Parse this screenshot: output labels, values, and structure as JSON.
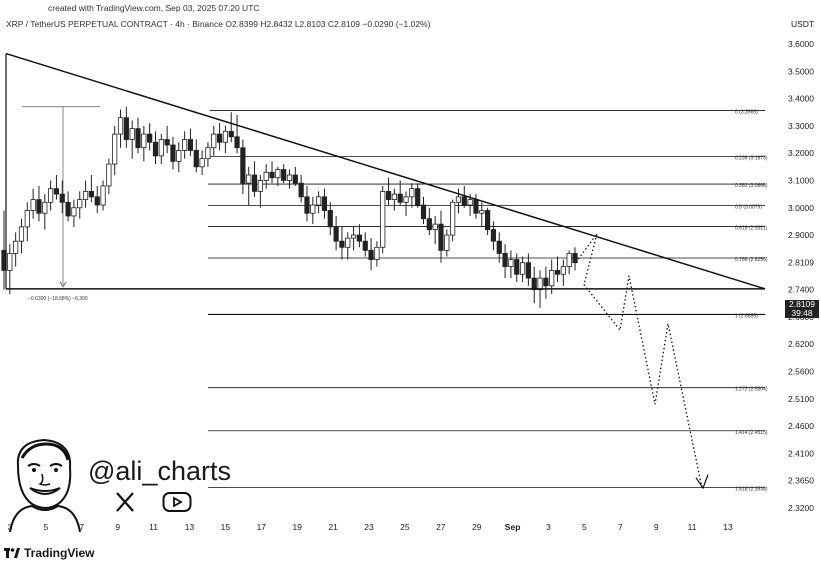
{
  "header": {
    "created": "created with TradingView.com, Sep 03, 2025 07:20 UTC",
    "symbol_line": "XRP / TetherUS PERPETUAL CONTRACT · 4h · Binance  O2.8399  H2.8432  L2.8103  C2.8109  −0.0290 (−1.02%)",
    "currency": "USDT"
  },
  "branding": {
    "handle": "@ali_charts",
    "logo_text": "TradingView",
    "social_icons": [
      "x-icon",
      "youtube-icon"
    ]
  },
  "price_tag": {
    "price": "2.8109",
    "countdown": "39:48"
  },
  "colors": {
    "candle_up": "#ffffff",
    "candle_down": "#222222",
    "lines": "#111111",
    "accent": "#131722"
  },
  "chart_data": {
    "type": "candlestick",
    "title": "",
    "price_axis_labels": [
      "3.6000",
      "3.5000",
      "3.4000",
      "3.3000",
      "3.2000",
      "3.1000",
      "3.0000",
      "2.9000",
      "2.8109",
      "2.7400",
      "2.6800",
      "2.6200",
      "2.5600",
      "2.5100",
      "2.4600",
      "2.4100",
      "2.3650",
      "2.3200"
    ],
    "ylim": [
      2.31,
      3.61
    ],
    "date_axis_labels": [
      "3",
      "5",
      "7",
      "9",
      "11",
      "13",
      "15",
      "17",
      "19",
      "21",
      "23",
      "25",
      "27",
      "29",
      "Sep",
      "3",
      "5",
      "7",
      "9",
      "11",
      "13"
    ],
    "fib_levels": [
      {
        "label": "0 (3.3565)",
        "price": 3.3565
      },
      {
        "label": "0.236 (3.1873)",
        "price": 3.1873
      },
      {
        "label": "0.382 (3.0868)",
        "price": 3.0868
      },
      {
        "label": "0.5 (3.0079)",
        "price": 3.0079
      },
      {
        "label": "0.618 (2.9311)",
        "price": 2.9311
      },
      {
        "label": "0.786 (2.8250)",
        "price": 2.825
      },
      {
        "label": "1 (2.6855)",
        "price": 2.6855
      },
      {
        "label": "1.272 (2.5304)",
        "price": 2.5304
      },
      {
        "label": "1.414 (2.4515)",
        "price": 2.4515
      },
      {
        "label": "1.618 (2.3538)",
        "price": 2.3538
      }
    ],
    "measure_label": "−0.6300 (−18.68%) −6,300",
    "triangle": {
      "top_price": 3.565,
      "base_price": 2.742
    },
    "projection_prices": [
      2.8109,
      2.905,
      2.753,
      2.651,
      2.776,
      2.618,
      2.653
    ],
    "candles": [
      [
        2.85,
        2.99,
        2.74,
        2.79
      ],
      [
        2.79,
        2.87,
        2.73,
        2.84
      ],
      [
        2.84,
        2.91,
        2.8,
        2.88
      ],
      [
        2.88,
        2.96,
        2.84,
        2.93
      ],
      [
        2.93,
        3.02,
        2.88,
        2.99
      ],
      [
        2.99,
        3.07,
        2.96,
        3.03
      ],
      [
        3.03,
        3.08,
        2.95,
        2.98
      ],
      [
        2.98,
        3.05,
        2.92,
        3.02
      ],
      [
        3.02,
        3.1,
        2.99,
        3.07
      ],
      [
        3.07,
        3.12,
        3.03,
        3.05
      ],
      [
        3.05,
        3.1,
        2.98,
        3.02
      ],
      [
        3.02,
        3.06,
        2.95,
        2.97
      ],
      [
        2.97,
        3.03,
        2.93,
        3.0
      ],
      [
        3.0,
        3.06,
        2.96,
        3.03
      ],
      [
        3.03,
        3.1,
        3.0,
        3.06
      ],
      [
        3.06,
        3.12,
        3.02,
        3.04
      ],
      [
        3.04,
        3.08,
        2.98,
        3.01
      ],
      [
        3.01,
        3.1,
        2.99,
        3.08
      ],
      [
        3.08,
        3.18,
        3.05,
        3.16
      ],
      [
        3.16,
        3.3,
        3.12,
        3.27
      ],
      [
        3.27,
        3.36,
        3.22,
        3.33
      ],
      [
        3.33,
        3.37,
        3.22,
        3.25
      ],
      [
        3.25,
        3.32,
        3.18,
        3.29
      ],
      [
        3.29,
        3.33,
        3.2,
        3.22
      ],
      [
        3.22,
        3.3,
        3.17,
        3.27
      ],
      [
        3.27,
        3.31,
        3.21,
        3.24
      ],
      [
        3.24,
        3.28,
        3.16,
        3.19
      ],
      [
        3.19,
        3.27,
        3.16,
        3.25
      ],
      [
        3.25,
        3.3,
        3.2,
        3.23
      ],
      [
        3.23,
        3.26,
        3.14,
        3.17
      ],
      [
        3.17,
        3.24,
        3.13,
        3.21
      ],
      [
        3.21,
        3.28,
        3.18,
        3.25
      ],
      [
        3.25,
        3.29,
        3.19,
        3.21
      ],
      [
        3.21,
        3.25,
        3.13,
        3.15
      ],
      [
        3.15,
        3.21,
        3.12,
        3.18
      ],
      [
        3.18,
        3.24,
        3.15,
        3.22
      ],
      [
        3.22,
        3.3,
        3.19,
        3.27
      ],
      [
        3.27,
        3.31,
        3.21,
        3.24
      ],
      [
        3.24,
        3.3,
        3.2,
        3.28
      ],
      [
        3.28,
        3.35,
        3.24,
        3.26
      ],
      [
        3.26,
        3.34,
        3.2,
        3.22
      ],
      [
        3.22,
        3.25,
        3.05,
        3.09
      ],
      [
        3.09,
        3.15,
        3.01,
        3.12
      ],
      [
        3.12,
        3.17,
        3.04,
        3.06
      ],
      [
        3.06,
        3.12,
        3.0,
        3.1
      ],
      [
        3.1,
        3.16,
        3.07,
        3.13
      ],
      [
        3.13,
        3.17,
        3.09,
        3.11
      ],
      [
        3.11,
        3.15,
        3.08,
        3.14
      ],
      [
        3.14,
        3.16,
        3.09,
        3.1
      ],
      [
        3.1,
        3.14,
        3.07,
        3.12
      ],
      [
        3.12,
        3.15,
        3.08,
        3.09
      ],
      [
        3.09,
        3.12,
        3.02,
        3.04
      ],
      [
        3.04,
        3.08,
        2.95,
        2.98
      ],
      [
        2.98,
        3.04,
        2.94,
        3.01
      ],
      [
        3.01,
        3.06,
        2.98,
        3.04
      ],
      [
        3.04,
        3.07,
        2.96,
        2.99
      ],
      [
        2.99,
        3.02,
        2.9,
        2.93
      ],
      [
        2.93,
        2.97,
        2.85,
        2.88
      ],
      [
        2.88,
        2.93,
        2.82,
        2.86
      ],
      [
        2.86,
        2.91,
        2.82,
        2.89
      ],
      [
        2.89,
        2.93,
        2.85,
        2.9
      ],
      [
        2.9,
        2.94,
        2.86,
        2.88
      ],
      [
        2.88,
        2.91,
        2.83,
        2.85
      ],
      [
        2.85,
        2.89,
        2.79,
        2.82
      ],
      [
        2.82,
        2.88,
        2.8,
        2.86
      ],
      [
        2.86,
        3.08,
        2.84,
        3.06
      ],
      [
        3.06,
        3.11,
        3.01,
        3.03
      ],
      [
        3.03,
        3.07,
        2.99,
        3.05
      ],
      [
        3.05,
        3.1,
        3.01,
        3.02
      ],
      [
        3.02,
        3.06,
        2.97,
        3.04
      ],
      [
        3.04,
        3.09,
        3.0,
        3.07
      ],
      [
        3.07,
        3.09,
        3.0,
        3.01
      ],
      [
        3.01,
        3.04,
        2.94,
        2.96
      ],
      [
        2.96,
        3.0,
        2.9,
        2.92
      ],
      [
        2.92,
        2.97,
        2.87,
        2.94
      ],
      [
        2.94,
        2.99,
        2.81,
        2.85
      ],
      [
        2.85,
        2.92,
        2.83,
        2.9
      ],
      [
        2.9,
        3.03,
        2.88,
        3.02
      ],
      [
        3.02,
        3.07,
        2.98,
        3.04
      ],
      [
        3.04,
        3.08,
        3.0,
        3.01
      ],
      [
        3.01,
        3.05,
        2.97,
        3.03
      ],
      [
        3.03,
        3.05,
        2.96,
        2.98
      ],
      [
        2.98,
        3.02,
        2.93,
        2.99
      ],
      [
        2.99,
        3.0,
        2.9,
        2.92
      ],
      [
        2.92,
        2.95,
        2.85,
        2.88
      ],
      [
        2.88,
        2.91,
        2.81,
        2.84
      ],
      [
        2.84,
        2.87,
        2.77,
        2.8
      ],
      [
        2.8,
        2.85,
        2.77,
        2.82
      ],
      [
        2.82,
        2.84,
        2.76,
        2.78
      ],
      [
        2.78,
        2.83,
        2.76,
        2.81
      ],
      [
        2.81,
        2.84,
        2.75,
        2.77
      ],
      [
        2.77,
        2.8,
        2.71,
        2.74
      ],
      [
        2.74,
        2.79,
        2.7,
        2.77
      ],
      [
        2.77,
        2.8,
        2.72,
        2.75
      ],
      [
        2.75,
        2.82,
        2.73,
        2.79
      ],
      [
        2.79,
        2.83,
        2.76,
        2.78
      ],
      [
        2.78,
        2.82,
        2.75,
        2.8
      ],
      [
        2.8,
        2.85,
        2.78,
        2.84
      ],
      [
        2.84,
        2.86,
        2.79,
        2.81
      ]
    ]
  }
}
